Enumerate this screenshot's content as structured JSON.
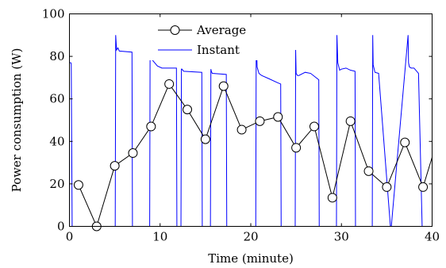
{
  "chart_data": {
    "type": "line",
    "xlabel": "Time (minute)",
    "ylabel": "Power consumption (W)",
    "xlim": [
      0,
      40
    ],
    "ylim": [
      0,
      100
    ],
    "xticks": [
      0,
      10,
      20,
      30,
      40
    ],
    "yticks": [
      0,
      20,
      40,
      60,
      80,
      100
    ],
    "grid": false,
    "legend_position": "top-center",
    "series": [
      {
        "name": "Average",
        "color": "#000000",
        "marker": "circle",
        "x": [
          1,
          3,
          5,
          7,
          9,
          11,
          13,
          15,
          17,
          19,
          21,
          23,
          25,
          27,
          29,
          31,
          33,
          35,
          37,
          39,
          40
        ],
        "y": [
          19.5,
          0,
          28.5,
          34.5,
          47,
          67,
          55,
          41,
          66,
          45.5,
          49.5,
          51.5,
          37,
          47,
          13.5,
          49.5,
          26,
          18.5,
          39.5,
          18.5,
          32.5
        ],
        "markers_shown": [
          true,
          true,
          true,
          true,
          true,
          true,
          true,
          true,
          true,
          true,
          true,
          true,
          true,
          true,
          true,
          true,
          true,
          true,
          true,
          true,
          false
        ]
      },
      {
        "name": "Instant",
        "color": "#0000ff",
        "marker": "none",
        "x": [
          0,
          0.15,
          0.2,
          0.3,
          0.35,
          5.05,
          5.1,
          5.2,
          5.35,
          5.5,
          6.9,
          6.95,
          7.0,
          7.05,
          8.85,
          8.9,
          9.0,
          9.2,
          9.4,
          9.7,
          10.2,
          11.8,
          11.85,
          11.9,
          11.95,
          12.3,
          12.35,
          12.4,
          12.6,
          14.6,
          14.65,
          14.7,
          15.55,
          15.6,
          15.65,
          15.75,
          17.3,
          17.35,
          17.4,
          20.55,
          20.6,
          20.7,
          20.9,
          21.2,
          22.0,
          23.0,
          23.3,
          23.35,
          23.4,
          24.9,
          24.95,
          25.0,
          25.15,
          25.3,
          26.0,
          26.6,
          27.5,
          27.55,
          27.6,
          29.45,
          29.5,
          29.6,
          29.8,
          30.0,
          30.5,
          31.0,
          31.5,
          31.55,
          31.6,
          33.4,
          33.45,
          33.5,
          33.7,
          34.1,
          35.4,
          35.45,
          35.5,
          37.35,
          37.4,
          37.5,
          37.7,
          38.0,
          38.5,
          38.9,
          38.95,
          39.0,
          40.0
        ],
        "y": [
          77,
          77,
          76.5,
          0,
          0,
          0,
          90,
          83,
          84,
          82.5,
          82,
          0,
          0,
          0,
          0,
          90,
          81,
          78,
          77,
          75.5,
          74.5,
          74.5,
          0,
          0,
          0,
          0,
          74,
          74,
          73,
          72.5,
          0,
          0,
          0,
          74,
          73,
          72,
          71.5,
          0,
          0,
          0,
          90,
          75,
          72,
          71,
          69.5,
          67.5,
          67,
          0,
          0,
          0,
          83,
          72,
          71,
          71,
          72.5,
          72,
          69,
          0,
          0,
          0,
          90,
          77,
          73.5,
          74,
          74.5,
          73.5,
          73,
          0,
          0,
          0,
          90,
          76,
          72.5,
          72,
          0,
          0,
          0,
          90,
          77,
          75,
          74.5,
          74.5,
          72,
          0,
          0,
          0,
          0
        ]
      }
    ]
  }
}
